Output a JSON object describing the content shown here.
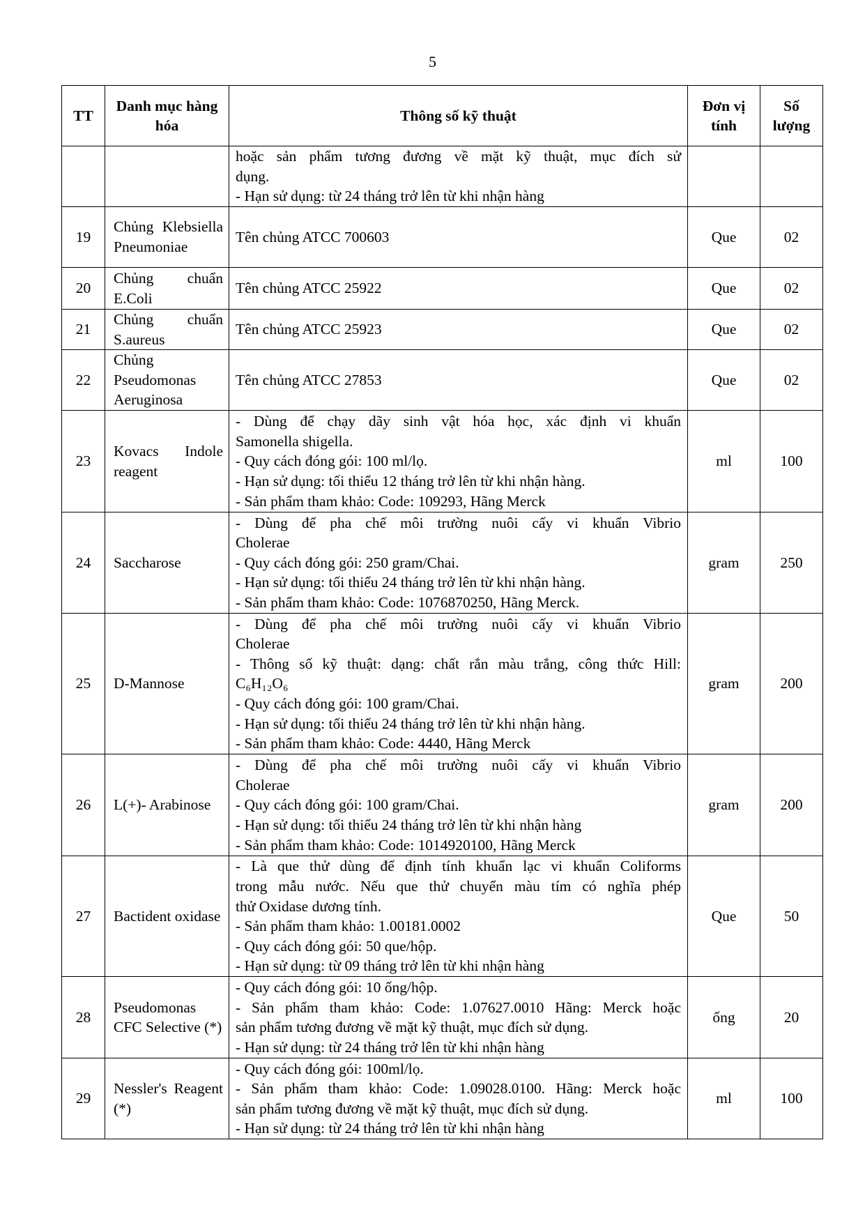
{
  "page_number": "5",
  "headers": {
    "tt": "TT",
    "name": "Danh mục hàng hóa",
    "spec": "Thông số kỹ thuật",
    "unit": "Đơn vị tính",
    "qty": "Số lượng"
  },
  "rows": [
    {
      "tt": "",
      "name": "",
      "spec": [
        " hoặc sản phẩm tương đương về mặt kỹ thuật, mục đích sử",
        "dụng.",
        "- Hạn sử dụng: từ 24 tháng trở lên từ khi nhận hàng"
      ],
      "unit": "",
      "qty": ""
    },
    {
      "tt": "19",
      "name": "Chủng Klebsiella Pneumoniae",
      "spec": [
        "Tên chủng ATCC 700603"
      ],
      "unit": "Que",
      "qty": "02"
    },
    {
      "tt": "20",
      "name": "Chủng chuẩn E.Coli",
      "spec": [
        "Tên chủng ATCC 25922"
      ],
      "unit": "Que",
      "qty": "02"
    },
    {
      "tt": "21",
      "name": "Chủng chuẩn S.aureus",
      "spec": [
        "Tên chủng ATCC 25923"
      ],
      "unit": "Que",
      "qty": "02"
    },
    {
      "tt": "22",
      "name": "Chủng Pseudomonas Aeruginosa",
      "spec": [
        "Tên chủng ATCC 27853"
      ],
      "unit": "Que",
      "qty": "02"
    },
    {
      "tt": "23",
      "name": "Kovacs Indole reagent",
      "spec": [
        "- Dùng để chạy dãy sinh vật hóa học, xác định vi khuẩn",
        "Samonella shigella.",
        "- Quy cách đóng gói: 100 ml/lọ.",
        "- Hạn sử dụng: tối thiểu 12 tháng trở lên từ khi nhận hàng.",
        "- Sản phẩm tham khảo: Code: 109293, Hãng Merck"
      ],
      "unit": "ml",
      "qty": "100"
    },
    {
      "tt": "24",
      "name": "Saccharose",
      "spec": [
        "- Dùng để pha chế môi trường nuôi cấy vi khuẩn Vibrio",
        "Cholerae",
        "- Quy cách đóng gói: 250 gram/Chai.",
        "- Hạn sử dụng: tối thiểu 24 tháng trở lên từ khi nhận hàng.",
        "- Sản phẩm tham khảo: Code: 1076870250, Hãng Merck."
      ],
      "unit": "gram",
      "qty": "250"
    },
    {
      "tt": "25",
      "name": "D-Mannose",
      "spec": [
        "- Dùng để pha chế môi trường nuôi cấy vi khuẩn Vibrio",
        "Cholerae",
        "- Thông số kỹ thuật: dạng: chất rắn màu trắng, công thức Hill:",
        "C₆H₁₂O₆",
        "- Quy cách đóng gói: 100 gram/Chai.",
        "- Hạn sử dụng: tối thiểu 24 tháng trở lên từ khi nhận hàng.",
        "- Sản phẩm tham khảo: Code: 4440, Hãng Merck"
      ],
      "unit": "gram",
      "qty": "200"
    },
    {
      "tt": "26",
      "name": "L(+)- Arabinose",
      "spec": [
        "- Dùng để pha chế môi trường nuôi cấy vi khuẩn Vibrio",
        "Cholerae",
        "- Quy cách đóng gói: 100 gram/Chai.",
        "- Hạn sử dụng: tối thiểu 24 tháng trở lên từ khi nhận hàng",
        "- Sản phẩm tham khảo: Code: 1014920100, Hãng Merck"
      ],
      "unit": "gram",
      "qty": "200"
    },
    {
      "tt": "27",
      "name": "Bactident oxidase",
      "spec": [
        "- Là que thử dùng để định tính khuẩn lạc vi khuẩn Coliforms",
        "trong mẫu nước. Nếu que thử chuyển màu tím có nghĩa phép",
        "thử Oxidase dương tính.",
        "- Sản phẩm tham khảo: 1.00181.0002",
        "- Quy cách đóng gói: 50 que/hộp.",
        "- Hạn sử dụng: từ 09 tháng trở lên từ khi nhận hàng"
      ],
      "unit": "Que",
      "qty": "50"
    },
    {
      "tt": "28",
      "name": "Pseudomonas CFC Selective (*)",
      "spec": [
        "- Quy cách đóng gói: 10 ống/hộp.",
        "- Sản phẩm tham khảo: Code: 1.07627.0010 Hãng: Merck hoặc",
        "sản phẩm tương đương về mặt kỹ thuật, mục đích sử dụng.",
        "- Hạn sử dụng: từ 24 tháng trở lên từ khi nhận hàng"
      ],
      "unit": "ống",
      "qty": "20"
    },
    {
      "tt": "29",
      "name": "Nessler's Reagent (*)",
      "spec": [
        "- Quy cách đóng gói: 100ml/lọ.",
        "- Sản phẩm tham khảo: Code: 1.09028.0100. Hãng: Merck hoặc",
        "sản phẩm tương đương về mặt kỹ thuật, mục đích sử dụng.",
        "- Hạn sử dụng: từ 24 tháng trở lên từ khi nhận hàng"
      ],
      "unit": "ml",
      "qty": "100"
    }
  ]
}
